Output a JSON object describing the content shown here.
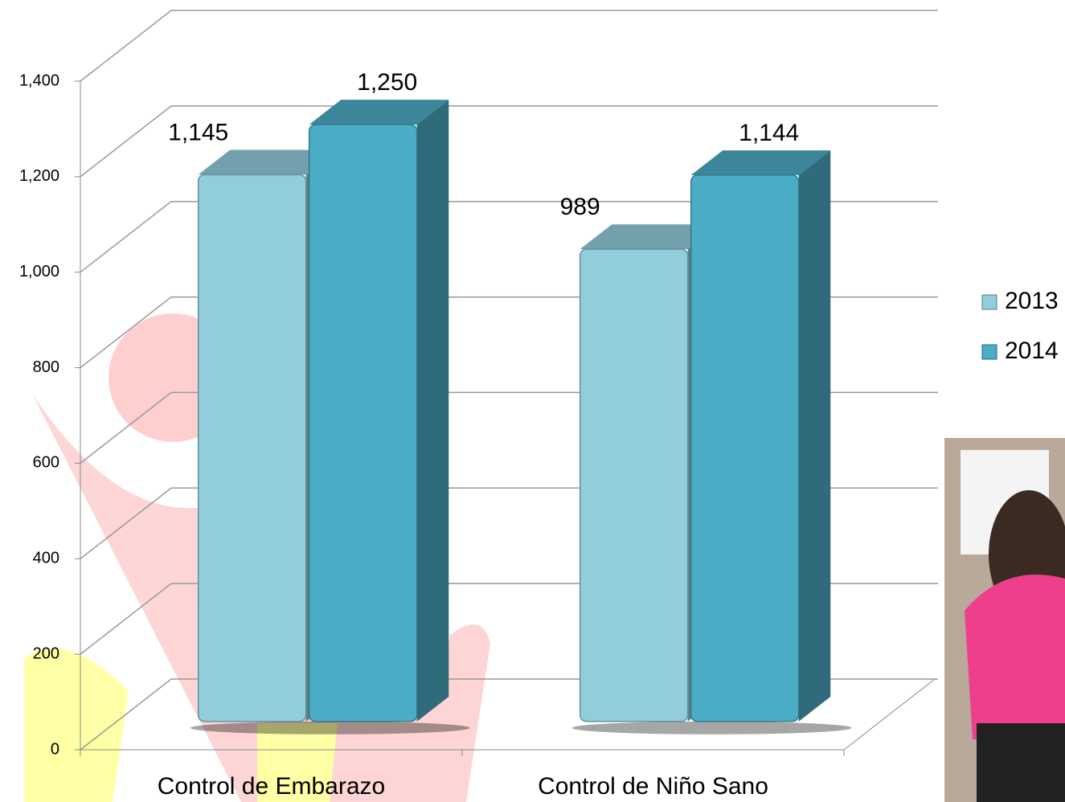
{
  "chart_data": {
    "type": "bar3d",
    "categories": [
      "Control de Embarazo",
      "Control de Niño Sano"
    ],
    "series": [
      {
        "name": "2013",
        "color": "#92cddc",
        "values": [
          1145,
          989
        ],
        "value_labels": [
          "1,145",
          "989"
        ]
      },
      {
        "name": "2014",
        "color": "#4bacc6",
        "values": [
          1250,
          1144
        ],
        "value_labels": [
          "1,250",
          "1,144"
        ]
      }
    ],
    "ylim": [
      0,
      1400
    ],
    "yticks": [
      0,
      200,
      400,
      600,
      800,
      {
        "value": 1000,
        "label": "1,000"
      },
      {
        "value": 1200,
        "label": "1,200"
      },
      {
        "value": 1400,
        "label": "1,400"
      }
    ],
    "grid": true,
    "legend": "right"
  }
}
